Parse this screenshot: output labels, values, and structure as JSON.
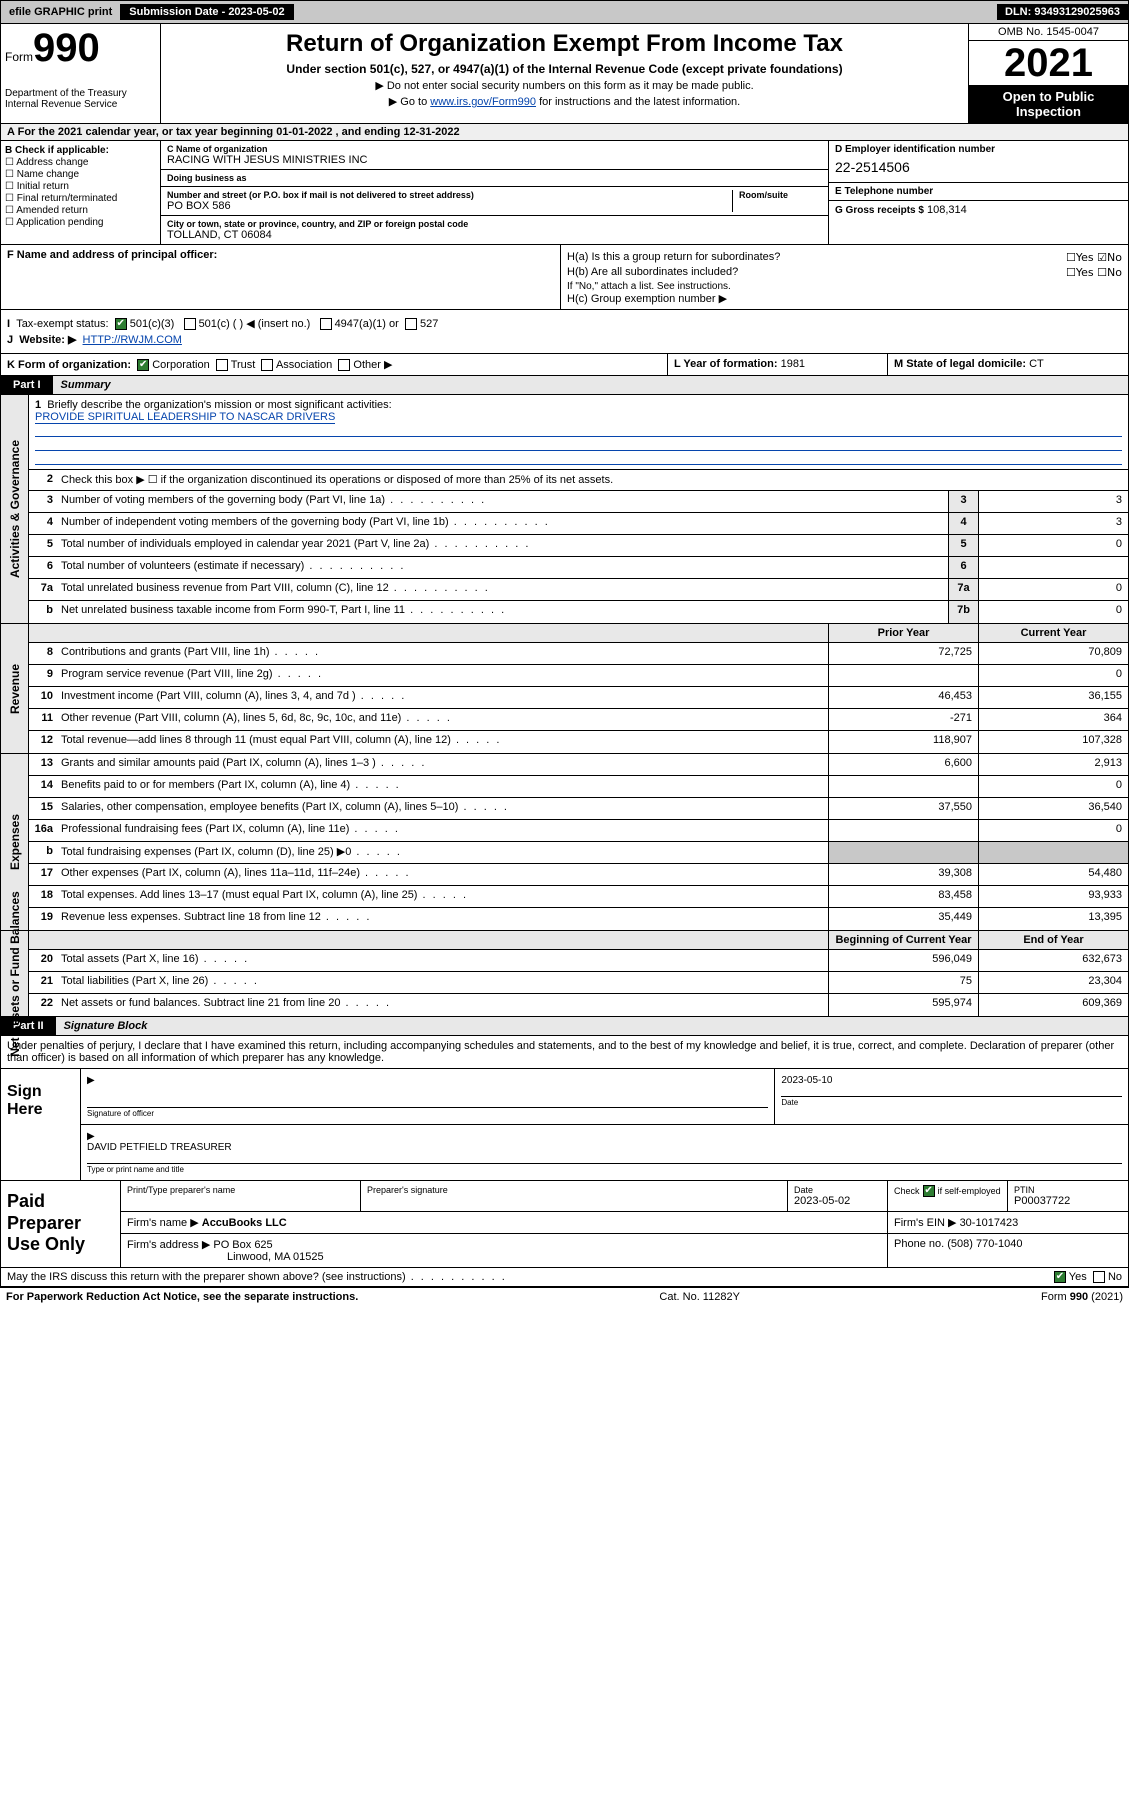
{
  "topbar": {
    "efile": "efile GRAPHIC print",
    "submission_label": "Submission Date - 2023-05-02",
    "dln": "DLN: 93493129025963"
  },
  "header": {
    "form_prefix": "Form",
    "form_number": "990",
    "dept": "Department of the Treasury",
    "irs": "Internal Revenue Service",
    "title": "Return of Organization Exempt From Income Tax",
    "subtitle": "Under section 501(c), 527, or 4947(a)(1) of the Internal Revenue Code (except private foundations)",
    "note1": "▶ Do not enter social security numbers on this form as it may be made public.",
    "note2_pre": "▶ Go to ",
    "note2_link": "www.irs.gov/Form990",
    "note2_post": " for instructions and the latest information.",
    "omb": "OMB No. 1545-0047",
    "year": "2021",
    "inspection": "Open to Public Inspection"
  },
  "row_a": "For the 2021 calendar year, or tax year beginning 01-01-2022   , and ending 12-31-2022",
  "section_b": {
    "label": "B Check if applicable:",
    "items": [
      "Address change",
      "Name change",
      "Initial return",
      "Final return/terminated",
      "Amended return",
      "Application pending"
    ]
  },
  "section_c": {
    "name_lbl": "C Name of organization",
    "name": "RACING WITH JESUS MINISTRIES INC",
    "dba_lbl": "Doing business as",
    "dba": "",
    "addr_lbl": "Number and street (or P.O. box if mail is not delivered to street address)",
    "room_lbl": "Room/suite",
    "addr": "PO BOX 586",
    "city_lbl": "City or town, state or province, country, and ZIP or foreign postal code",
    "city": "TOLLAND, CT  06084"
  },
  "section_d": {
    "ein_lbl": "D Employer identification number",
    "ein": "22-2514506",
    "tel_lbl": "E Telephone number",
    "tel": "",
    "gross_lbl": "G Gross receipts $",
    "gross": "108,314"
  },
  "section_f": {
    "label": "F Name and address of principal officer:",
    "value": ""
  },
  "section_h": {
    "ha": "H(a)  Is this a group return for subordinates?",
    "ha_yes": "Yes",
    "ha_no": "No",
    "hb": "H(b)  Are all subordinates included?",
    "hb_yes": "Yes",
    "hb_no": "No",
    "hb_note": "If \"No,\" attach a list. See instructions.",
    "hc": "H(c)  Group exemption number ▶"
  },
  "section_i": {
    "label": "Tax-exempt status:",
    "opt1": "501(c)(3)",
    "opt2": "501(c) (   ) ◀ (insert no.)",
    "opt3": "4947(a)(1) or",
    "opt4": "527"
  },
  "section_j": {
    "label": "Website: ▶",
    "value": "HTTP://RWJM.COM"
  },
  "section_k": {
    "label": "K Form of organization:",
    "opts": [
      "Corporation",
      "Trust",
      "Association",
      "Other ▶"
    ]
  },
  "section_l": {
    "label": "L Year of formation:",
    "value": "1981"
  },
  "section_m": {
    "label": "M State of legal domicile:",
    "value": "CT"
  },
  "part1": {
    "tag": "Part I",
    "title": "Summary"
  },
  "mission": {
    "q": "Briefly describe the organization's mission or most significant activities:",
    "text": "PROVIDE SPIRITUAL LEADERSHIP TO NASCAR DRIVERS"
  },
  "governance": {
    "tab": "Activities & Governance",
    "line2": "Check this box ▶ ☐  if the organization discontinued its operations or disposed of more than 25% of its net assets.",
    "rows": [
      {
        "n": "3",
        "d": "Number of voting members of the governing body (Part VI, line 1a)",
        "c": "3",
        "v": "3"
      },
      {
        "n": "4",
        "d": "Number of independent voting members of the governing body (Part VI, line 1b)",
        "c": "4",
        "v": "3"
      },
      {
        "n": "5",
        "d": "Total number of individuals employed in calendar year 2021 (Part V, line 2a)",
        "c": "5",
        "v": "0"
      },
      {
        "n": "6",
        "d": "Total number of volunteers (estimate if necessary)",
        "c": "6",
        "v": ""
      },
      {
        "n": "7a",
        "d": "Total unrelated business revenue from Part VIII, column (C), line 12",
        "c": "7a",
        "v": "0"
      },
      {
        "n": "b",
        "d": "Net unrelated business taxable income from Form 990-T, Part I, line 11",
        "c": "7b",
        "v": "0"
      }
    ]
  },
  "revenue": {
    "tab": "Revenue",
    "hdr_prior": "Prior Year",
    "hdr_curr": "Current Year",
    "rows": [
      {
        "n": "8",
        "d": "Contributions and grants (Part VIII, line 1h)",
        "p": "72,725",
        "c": "70,809"
      },
      {
        "n": "9",
        "d": "Program service revenue (Part VIII, line 2g)",
        "p": "",
        "c": "0"
      },
      {
        "n": "10",
        "d": "Investment income (Part VIII, column (A), lines 3, 4, and 7d )",
        "p": "46,453",
        "c": "36,155"
      },
      {
        "n": "11",
        "d": "Other revenue (Part VIII, column (A), lines 5, 6d, 8c, 9c, 10c, and 11e)",
        "p": "-271",
        "c": "364"
      },
      {
        "n": "12",
        "d": "Total revenue—add lines 8 through 11 (must equal Part VIII, column (A), line 12)",
        "p": "118,907",
        "c": "107,328"
      }
    ]
  },
  "expenses": {
    "tab": "Expenses",
    "rows": [
      {
        "n": "13",
        "d": "Grants and similar amounts paid (Part IX, column (A), lines 1–3 )",
        "p": "6,600",
        "c": "2,913"
      },
      {
        "n": "14",
        "d": "Benefits paid to or for members (Part IX, column (A), line 4)",
        "p": "",
        "c": "0"
      },
      {
        "n": "15",
        "d": "Salaries, other compensation, employee benefits (Part IX, column (A), lines 5–10)",
        "p": "37,550",
        "c": "36,540"
      },
      {
        "n": "16a",
        "d": "Professional fundraising fees (Part IX, column (A), line 11e)",
        "p": "",
        "c": "0"
      },
      {
        "n": "b",
        "d": "Total fundraising expenses (Part IX, column (D), line 25) ▶0",
        "p": "GRAY",
        "c": "GRAY"
      },
      {
        "n": "17",
        "d": "Other expenses (Part IX, column (A), lines 11a–11d, 11f–24e)",
        "p": "39,308",
        "c": "54,480"
      },
      {
        "n": "18",
        "d": "Total expenses. Add lines 13–17 (must equal Part IX, column (A), line 25)",
        "p": "83,458",
        "c": "93,933"
      },
      {
        "n": "19",
        "d": "Revenue less expenses. Subtract line 18 from line 12",
        "p": "35,449",
        "c": "13,395"
      }
    ]
  },
  "netassets": {
    "tab": "Net Assets or Fund Balances",
    "hdr_begin": "Beginning of Current Year",
    "hdr_end": "End of Year",
    "rows": [
      {
        "n": "20",
        "d": "Total assets (Part X, line 16)",
        "p": "596,049",
        "c": "632,673"
      },
      {
        "n": "21",
        "d": "Total liabilities (Part X, line 26)",
        "p": "75",
        "c": "23,304"
      },
      {
        "n": "22",
        "d": "Net assets or fund balances. Subtract line 21 from line 20",
        "p": "595,974",
        "c": "609,369"
      }
    ]
  },
  "part2": {
    "tag": "Part II",
    "title": "Signature Block"
  },
  "penalties": "Under penalties of perjury, I declare that I have examined this return, including accompanying schedules and statements, and to the best of my knowledge and belief, it is true, correct, and complete. Declaration of preparer (other than officer) is based on all information of which preparer has any knowledge.",
  "sign": {
    "left": "Sign Here",
    "sig_lbl": "Signature of officer",
    "date_lbl": "Date",
    "date": "2023-05-10",
    "name": "DAVID PETFIELD  TREASURER",
    "name_lbl": "Type or print name and title"
  },
  "preparer": {
    "left": "Paid Preparer Use Only",
    "h1": "Print/Type preparer's name",
    "h2": "Preparer's signature",
    "h3_lbl": "Date",
    "h3": "2023-05-02",
    "h4_lbl": "Check",
    "h4_suffix": "if self-employed",
    "h5_lbl": "PTIN",
    "h5": "P00037722",
    "firm_name_lbl": "Firm's name   ▶",
    "firm_name": "AccuBooks LLC",
    "firm_ein_lbl": "Firm's EIN ▶",
    "firm_ein": "30-1017423",
    "firm_addr_lbl": "Firm's address ▶",
    "firm_addr": "PO Box 625",
    "firm_city": "Linwood, MA  01525",
    "phone_lbl": "Phone no.",
    "phone": "(508) 770-1040"
  },
  "discuss": {
    "q": "May the IRS discuss this return with the preparer shown above? (see instructions)",
    "yes": "Yes",
    "no": "No"
  },
  "footer": {
    "left": "For Paperwork Reduction Act Notice, see the separate instructions.",
    "mid": "Cat. No. 11282Y",
    "right": "Form 990 (2021)"
  }
}
